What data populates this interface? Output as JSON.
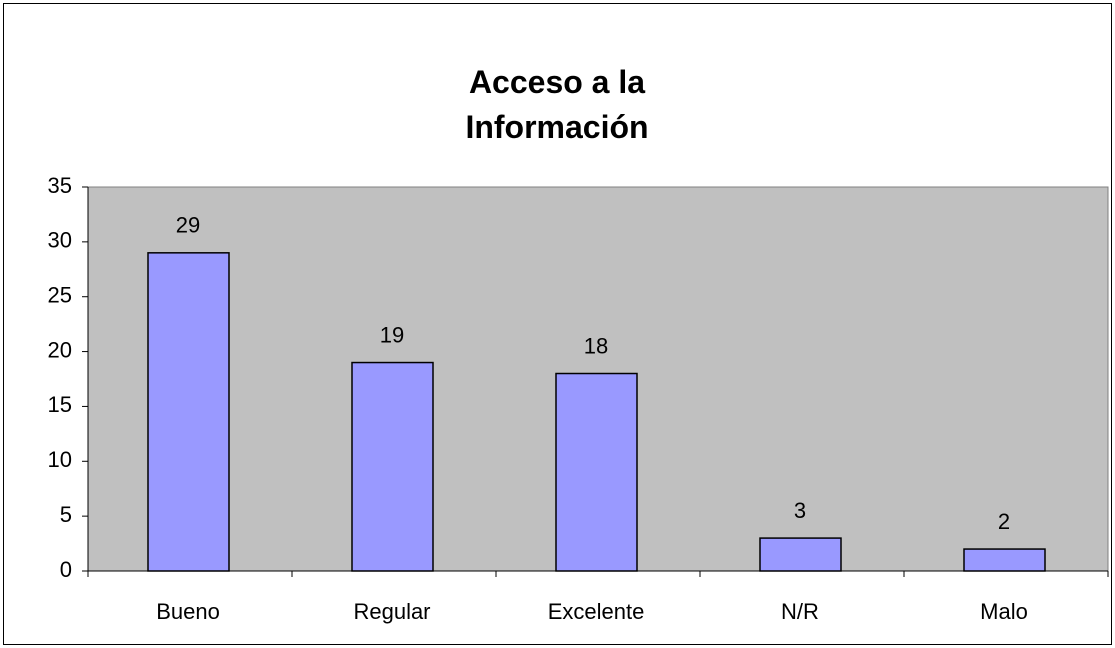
{
  "chart_data": {
    "type": "bar",
    "title": "Acceso a la Información",
    "categories": [
      "Bueno",
      "Regular",
      "Excelente",
      "N/R",
      "Malo"
    ],
    "values": [
      29,
      19,
      18,
      3,
      2
    ],
    "color": "#9999ff",
    "plot_background": "#c0c0c0",
    "ylim": [
      0,
      35
    ],
    "yticks": [
      0,
      5,
      10,
      15,
      20,
      25,
      30,
      35
    ],
    "grid": false
  }
}
